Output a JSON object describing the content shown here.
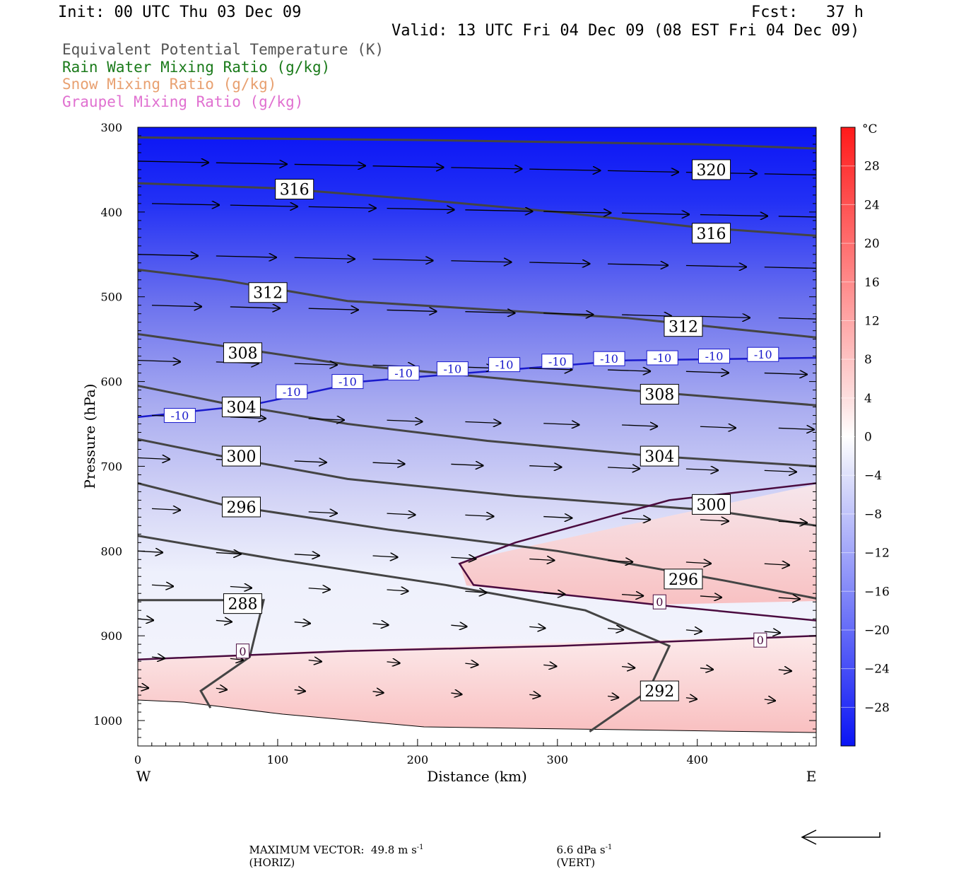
{
  "header": {
    "init": "Init: 00 UTC Thu 03 Dec 09",
    "fcst": "Fcst:   37 h",
    "valid": "Valid: 13 UTC Fri 04 Dec 09 (08 EST Fri 04 Dec 09)"
  },
  "legend": [
    {
      "text": "Equivalent Potential Temperature (K)",
      "color": "#555555"
    },
    {
      "text": "Rain Water Mixing Ratio (g/kg)",
      "color": "#1a7a1a"
    },
    {
      "text": "Snow Mixing Ratio (g/kg)",
      "color": "#e8a070"
    },
    {
      "text": "Graupel Mixing Ratio (g/kg)",
      "color": "#e070d0"
    }
  ],
  "chart_data": {
    "type": "contour",
    "xlabel": "Distance (km)",
    "ylabel": "Pressure (hPa)",
    "xlim": [
      0,
      485
    ],
    "ylim": [
      1030,
      300
    ],
    "x_ticks": [
      0,
      100,
      200,
      300,
      400
    ],
    "y_ticks": [
      300,
      400,
      500,
      600,
      700,
      800,
      900,
      1000
    ],
    "x_end_labels": {
      "left": "W",
      "right": "E"
    },
    "colorbar": {
      "unit": "°C",
      "levels": [
        28,
        24,
        20,
        16,
        12,
        8,
        4,
        0,
        -4,
        -8,
        -12,
        -16,
        -20,
        -24,
        -28
      ],
      "range": [
        -32,
        32
      ]
    },
    "theta_e_contours": [
      {
        "label": "320",
        "points": [
          [
            0,
            312
          ],
          [
            200,
            315
          ],
          [
            400,
            320
          ],
          [
            485,
            325
          ]
        ],
        "label_at": [
          410,
          350
        ]
      },
      {
        "label": "316",
        "points": [
          [
            0,
            366
          ],
          [
            100,
            372
          ],
          [
            200,
            385
          ],
          [
            300,
            400
          ],
          [
            400,
            418
          ],
          [
            485,
            428
          ]
        ],
        "label_at": [
          112,
          373
        ]
      },
      {
        "label": "316",
        "points": [],
        "label_at": [
          410,
          425
        ]
      },
      {
        "label": "312",
        "points": [
          [
            0,
            468
          ],
          [
            60,
            480
          ],
          [
            150,
            505
          ],
          [
            250,
            515
          ],
          [
            350,
            525
          ],
          [
            485,
            548
          ]
        ],
        "label_at": [
          93,
          495
        ]
      },
      {
        "label": "312",
        "points": [],
        "label_at": [
          390,
          535
        ]
      },
      {
        "label": "308",
        "points": [
          [
            0,
            544
          ],
          [
            60,
            558
          ],
          [
            150,
            580
          ],
          [
            250,
            595
          ],
          [
            350,
            610
          ],
          [
            485,
            628
          ]
        ],
        "label_at": [
          75,
          566
        ]
      },
      {
        "label": "308",
        "points": [],
        "label_at": [
          373,
          615
        ]
      },
      {
        "label": "304",
        "points": [
          [
            0,
            605
          ],
          [
            60,
            625
          ],
          [
            150,
            650
          ],
          [
            250,
            670
          ],
          [
            370,
            688
          ],
          [
            485,
            700
          ]
        ],
        "label_at": [
          74,
          630
        ]
      },
      {
        "label": "304",
        "points": [],
        "label_at": [
          373,
          688
        ]
      },
      {
        "label": "300",
        "points": [
          [
            0,
            668
          ],
          [
            60,
            688
          ],
          [
            150,
            715
          ],
          [
            270,
            735
          ],
          [
            410,
            752
          ],
          [
            485,
            770
          ]
        ],
        "label_at": [
          74,
          688
        ]
      },
      {
        "label": "300",
        "points": [],
        "label_at": [
          410,
          745
        ]
      },
      {
        "label": "296",
        "points": [
          [
            0,
            720
          ],
          [
            60,
            745
          ],
          [
            180,
            775
          ],
          [
            300,
            800
          ],
          [
            420,
            835
          ],
          [
            485,
            856
          ]
        ],
        "label_at": [
          74,
          748
        ]
      },
      {
        "label": "296",
        "points": [],
        "label_at": [
          390,
          833
        ]
      },
      {
        "label": "292",
        "points": [
          [
            0,
            782
          ],
          [
            100,
            810
          ],
          [
            220,
            840
          ],
          [
            320,
            870
          ],
          [
            380,
            912
          ],
          [
            365,
            965
          ],
          [
            323,
            1013
          ]
        ],
        "label_at": [
          373,
          965
        ]
      },
      {
        "label": "288",
        "points": [
          [
            0,
            858
          ],
          [
            90,
            858
          ],
          [
            80,
            925
          ],
          [
            45,
            965
          ],
          [
            52,
            985
          ]
        ],
        "label_at": [
          75,
          862
        ]
      }
    ],
    "isotherms": [
      {
        "label": "-10",
        "color": "#1a1acc",
        "points": [
          [
            0,
            642
          ],
          [
            80,
            628
          ],
          [
            160,
            600
          ],
          [
            250,
            588
          ],
          [
            350,
            575
          ],
          [
            485,
            572
          ]
        ]
      },
      {
        "label": "0",
        "color": "#4a0b3f",
        "points": [
          [
            0,
            928
          ],
          [
            150,
            918
          ],
          [
            300,
            912
          ],
          [
            485,
            900
          ]
        ]
      },
      {
        "label": "0",
        "color": "#4a0b3f",
        "points": [
          [
            485,
            720
          ],
          [
            380,
            740
          ],
          [
            270,
            790
          ],
          [
            230,
            815
          ],
          [
            240,
            840
          ],
          [
            380,
            865
          ],
          [
            485,
            882
          ]
        ]
      }
    ],
    "wind_vectors": "rows of eastward-pointing arrows, magnitude decreasing with pressure",
    "footer": {
      "max_vector": "MAXIMUM VECTOR:  49.8 m s",
      "horiz": "(HORIZ)",
      "vert_value": "6.6 dPa s",
      "vert": "(VERT)",
      "exp": "-1"
    }
  }
}
